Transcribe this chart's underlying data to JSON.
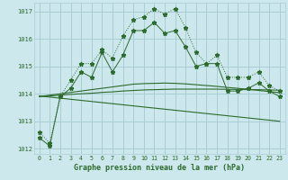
{
  "title": "Graphe pression niveau de la mer (hPa)",
  "background_color": "#cce8ec",
  "grid_color": "#aacdd4",
  "line_color": "#2d6a2d",
  "x_labels": [
    "0",
    "1",
    "2",
    "3",
    "4",
    "5",
    "6",
    "7",
    "8",
    "9",
    "10",
    "11",
    "12",
    "13",
    "14",
    "15",
    "16",
    "17",
    "18",
    "19",
    "20",
    "21",
    "22",
    "23"
  ],
  "ylim": [
    1011.8,
    1017.3
  ],
  "yticks": [
    1012,
    1013,
    1014,
    1015,
    1016,
    1017
  ],
  "series1": [
    1012.6,
    1012.2,
    1013.9,
    1014.5,
    1015.1,
    1015.1,
    1015.6,
    1015.3,
    1016.1,
    1016.7,
    1016.8,
    1017.1,
    1016.9,
    1017.1,
    1016.4,
    1015.5,
    1015.1,
    1015.4,
    1014.6,
    1014.6,
    1014.6,
    1014.8,
    1014.3,
    1014.1
  ],
  "series2": [
    1012.4,
    1012.1,
    1013.9,
    1014.2,
    1014.8,
    1014.6,
    1015.5,
    1014.8,
    1015.4,
    1016.3,
    1016.3,
    1016.6,
    1016.2,
    1016.3,
    1015.7,
    1015.0,
    1015.1,
    1015.1,
    1014.1,
    1014.1,
    1014.2,
    1014.4,
    1014.1,
    1013.9
  ],
  "trend_flat": [
    1013.9,
    1013.92,
    1013.95,
    1013.98,
    1014.0,
    1014.02,
    1014.05,
    1014.07,
    1014.1,
    1014.12,
    1014.14,
    1014.15,
    1014.16,
    1014.17,
    1014.17,
    1014.17,
    1014.17,
    1014.17,
    1014.16,
    1014.16,
    1014.15,
    1014.15,
    1014.14,
    1014.13
  ],
  "trend_curve": [
    1013.9,
    1013.95,
    1014.0,
    1014.05,
    1014.1,
    1014.15,
    1014.2,
    1014.25,
    1014.3,
    1014.35,
    1014.37,
    1014.38,
    1014.39,
    1014.38,
    1014.36,
    1014.33,
    1014.3,
    1014.27,
    1014.23,
    1014.2,
    1014.16,
    1014.12,
    1014.08,
    1014.04
  ],
  "trend_decline": [
    1013.92,
    1013.88,
    1013.84,
    1013.8,
    1013.76,
    1013.72,
    1013.68,
    1013.64,
    1013.6,
    1013.56,
    1013.52,
    1013.48,
    1013.44,
    1013.4,
    1013.36,
    1013.32,
    1013.28,
    1013.24,
    1013.2,
    1013.16,
    1013.12,
    1013.08,
    1013.04,
    1013.0
  ]
}
